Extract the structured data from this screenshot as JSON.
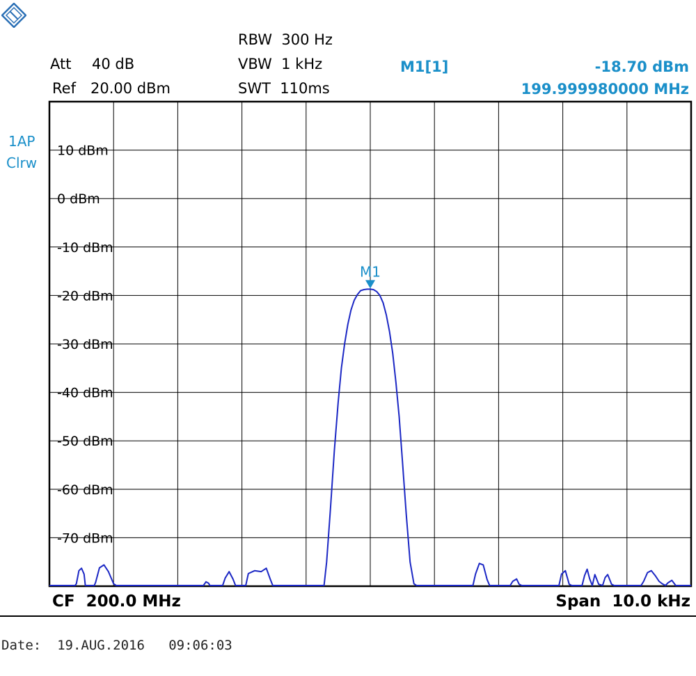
{
  "header": {
    "att_label": "Att",
    "att_value": "40 dB",
    "ref_label": "Ref",
    "ref_value": "20.00 dBm",
    "rbw": "RBW  300 Hz",
    "vbw": "VBW  1 kHz",
    "swt": "SWT  110ms",
    "marker_name": "M1[1]",
    "marker_level": "-18.70 dBm",
    "marker_freq": "199.999980000 MHz"
  },
  "trace_label": {
    "line1": "1AP",
    "line2": "Clrw"
  },
  "footer": {
    "cf": "CF  200.0 MHz",
    "span": "Span  10.0 kHz",
    "date": "Date:  19.AUG.2016   09:06:03"
  },
  "colors": {
    "trace": "#1b27c4",
    "accent": "#1a8fc9",
    "grid": "#000000"
  },
  "chart_data": {
    "type": "line",
    "xlabel": "",
    "ylabel": "",
    "center_freq_mhz": 200.0,
    "span_khz": 10.0,
    "x_unit": "kHz offset from CF",
    "xlim": [
      -5,
      5
    ],
    "ylim": [
      -80,
      20
    ],
    "y_ticks": [
      10,
      0,
      -10,
      -20,
      -30,
      -40,
      -50,
      -60,
      -70
    ],
    "y_tick_labels": [
      "10 dBm",
      "0 dBm",
      "-10 dBm",
      "-20 dBm",
      "-30 dBm",
      "-40 dBm",
      "-50 dBm",
      "-60 dBm",
      "-70 dBm"
    ],
    "grid": true,
    "marker": {
      "label": "M1",
      "x": 0.0,
      "y": -18.7
    },
    "series": [
      {
        "values_x": [
          -5.0,
          -4.6,
          -4.58,
          -4.54,
          -4.5,
          -4.46,
          -4.44,
          -4.3,
          -4.28,
          -4.22,
          -4.15,
          -4.08,
          -4.0,
          -3.96,
          -2.6,
          -2.56,
          -2.52,
          -2.5,
          -2.3,
          -2.26,
          -2.2,
          -2.14,
          -2.1,
          -1.94,
          -1.9,
          -1.8,
          -1.7,
          -1.62,
          -1.56,
          -1.52,
          -1.5,
          -0.72,
          -0.68,
          -0.62,
          -0.56,
          -0.5,
          -0.45,
          -0.4,
          -0.35,
          -0.3,
          -0.25,
          -0.2,
          -0.15,
          -0.1,
          -0.05,
          0.0,
          0.05,
          0.1,
          0.15,
          0.2,
          0.25,
          0.3,
          0.35,
          0.4,
          0.45,
          0.5,
          0.56,
          0.62,
          0.68,
          0.72,
          1.0,
          1.6,
          1.64,
          1.7,
          1.76,
          1.82,
          1.86,
          1.9,
          2.18,
          2.22,
          2.28,
          2.32,
          2.36,
          2.4,
          2.94,
          2.98,
          3.04,
          3.1,
          3.14,
          3.18,
          3.3,
          3.34,
          3.38,
          3.42,
          3.46,
          3.5,
          3.56,
          3.62,
          3.66,
          3.7,
          3.76,
          3.8,
          4.22,
          4.26,
          4.32,
          4.38,
          4.44,
          4.5,
          4.55,
          4.6,
          4.64,
          4.7,
          4.76,
          5.0
        ],
        "values_y": [
          -80,
          -80,
          -79.5,
          -76.8,
          -76.3,
          -77.5,
          -80,
          -80,
          -79.2,
          -76.2,
          -75.6,
          -77.0,
          -79.5,
          -80,
          -80,
          -79.1,
          -79.4,
          -80,
          -80,
          -78.3,
          -77.0,
          -78.5,
          -80,
          -80,
          -77.4,
          -76.8,
          -77.0,
          -76.3,
          -78.5,
          -80,
          -80,
          -80,
          -75.0,
          -64.0,
          -52.0,
          -42.0,
          -35.0,
          -30.0,
          -26.0,
          -23.0,
          -21.0,
          -19.8,
          -19.0,
          -18.8,
          -18.7,
          -18.7,
          -18.8,
          -19.2,
          -20.0,
          -21.5,
          -24.0,
          -27.5,
          -32.0,
          -38.0,
          -45.0,
          -54.0,
          -65.0,
          -75.0,
          -79.5,
          -80,
          -80,
          -80,
          -77.5,
          -75.3,
          -75.6,
          -78.6,
          -80,
          -80,
          -80,
          -79.0,
          -78.5,
          -79.6,
          -80,
          -80,
          -80,
          -77.5,
          -76.8,
          -79.6,
          -80,
          -80,
          -80,
          -77.8,
          -76.5,
          -78.5,
          -80,
          -77.6,
          -79.6,
          -80,
          -78.2,
          -77.6,
          -79.6,
          -80,
          -80,
          -79.0,
          -77.2,
          -76.8,
          -77.8,
          -79.0,
          -79.5,
          -80,
          -79.3,
          -78.8,
          -80,
          -80
        ]
      }
    ]
  }
}
